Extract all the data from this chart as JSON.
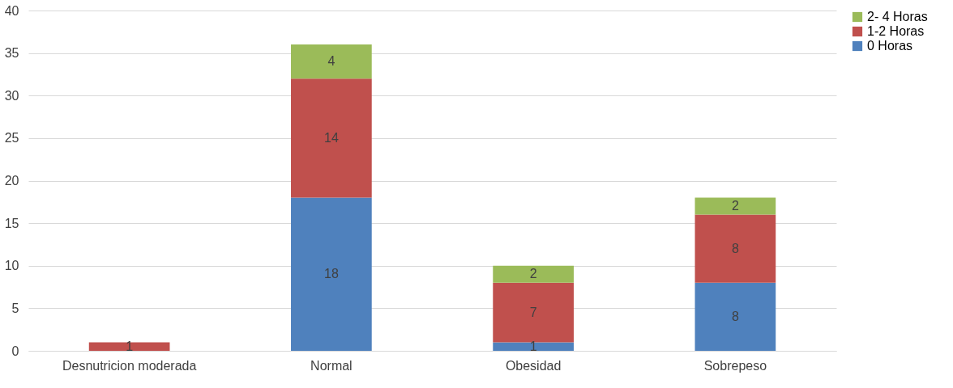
{
  "chart_data": {
    "type": "bar",
    "stacked": true,
    "categories": [
      "Desnutricion moderada",
      "Normal",
      "Obesidad",
      "Sobrepeso"
    ],
    "series": [
      {
        "name": "0 Horas",
        "color": "#4f81bd",
        "values": [
          null,
          18,
          1,
          8
        ]
      },
      {
        "name": "1-2 Horas",
        "color": "#c0504d",
        "values": [
          1,
          14,
          7,
          8
        ]
      },
      {
        "name": "2- 4 Horas",
        "color": "#9bbb59",
        "values": [
          null,
          4,
          2,
          2
        ]
      }
    ],
    "ylim": [
      0,
      40
    ],
    "yticks": [
      0,
      5,
      10,
      15,
      20,
      25,
      30,
      35,
      40
    ],
    "grid": "y",
    "legend": "right",
    "data_labels": true
  }
}
